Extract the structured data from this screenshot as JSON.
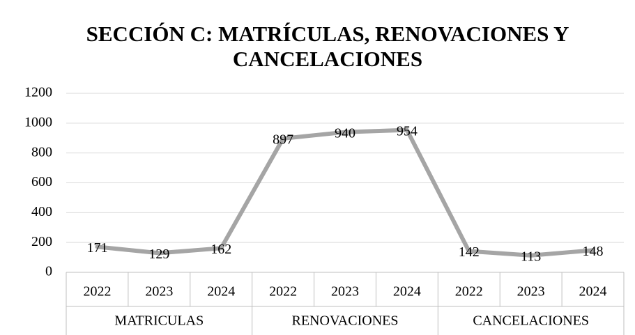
{
  "chart_data": {
    "type": "line",
    "title": [
      "SECCIÓN C: MATRÍCULAS, RENOVACIONES Y",
      "CANCELACIONES"
    ],
    "categories": [
      "2022",
      "2023",
      "2024",
      "2022",
      "2023",
      "2024",
      "2022",
      "2023",
      "2024"
    ],
    "category_groups": [
      {
        "label": "MATRICULAS",
        "count": 3
      },
      {
        "label": "RENOVACIONES",
        "count": 3
      },
      {
        "label": "CANCELACIONES",
        "count": 3
      }
    ],
    "series": [
      {
        "color": "#a5a5a5",
        "values": [
          171,
          129,
          162,
          897,
          940,
          954,
          142,
          113,
          148
        ]
      }
    ],
    "data_labels": true,
    "ylim": [
      0,
      1200
    ],
    "yticks": [
      0,
      200,
      400,
      600,
      800,
      1000,
      1200
    ],
    "grid": true
  }
}
